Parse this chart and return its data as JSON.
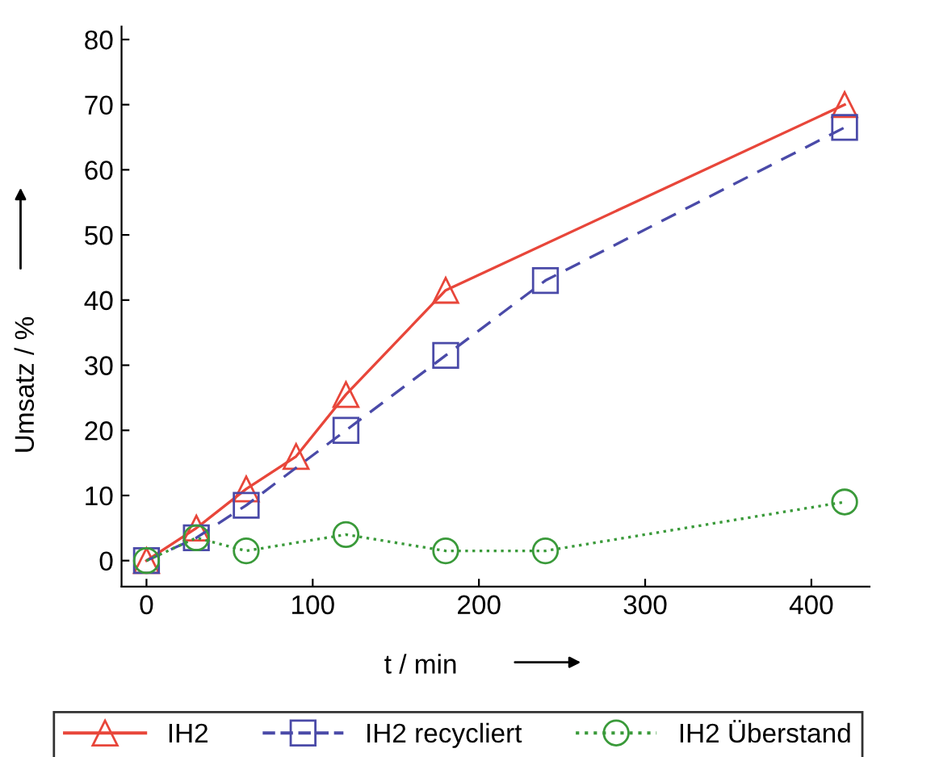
{
  "chart_data": {
    "type": "line",
    "xlabel": "t / min",
    "ylabel": "Umsatz / %",
    "xlim": [
      -15,
      435
    ],
    "ylim": [
      -4,
      82
    ],
    "xticks": [
      0,
      100,
      200,
      300,
      400
    ],
    "yticks": [
      0,
      10,
      20,
      30,
      40,
      50,
      60,
      70,
      80
    ],
    "grid": false,
    "legend": "bottom",
    "series": [
      {
        "name": "IH2",
        "color": "#e8463a",
        "marker": "triangle",
        "line_style": "solid",
        "x": [
          0,
          30,
          60,
          90,
          120,
          180,
          420
        ],
        "values": [
          0,
          5,
          11,
          16,
          25.5,
          41.5,
          70
        ]
      },
      {
        "name": "IH2 recycliert",
        "color": "#4a4aa8",
        "marker": "square",
        "line_style": "dashed",
        "x": [
          0,
          30,
          60,
          120,
          180,
          240,
          420
        ],
        "values": [
          0,
          3.5,
          8.5,
          20,
          31.5,
          43,
          66.5
        ]
      },
      {
        "name": "IH2 Überstand",
        "color": "#3a9a3a",
        "marker": "circle",
        "line_style": "dotted",
        "x": [
          0,
          30,
          60,
          120,
          180,
          240,
          420
        ],
        "values": [
          0,
          3.5,
          1.5,
          4,
          1.5,
          1.5,
          9
        ]
      }
    ]
  }
}
